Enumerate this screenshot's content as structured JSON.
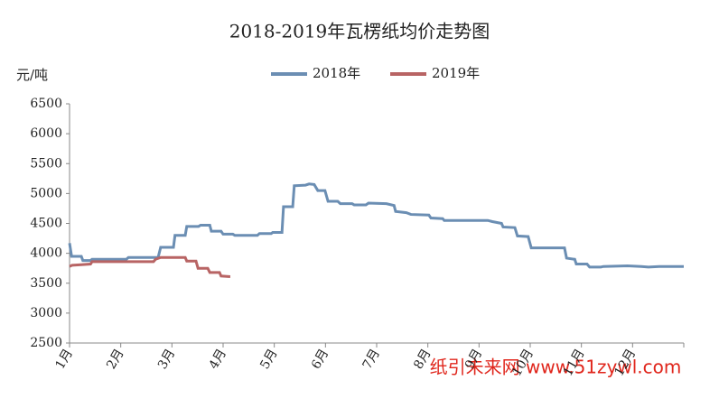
{
  "chart_data": {
    "type": "line",
    "title": "2018-2019年瓦楞纸均价走势图",
    "y_label": "元/吨",
    "watermark": "纸引未来网 www.51zywl.com",
    "xlim": [
      1,
      13
    ],
    "xticks": [
      {
        "value": 1,
        "label": "1月"
      },
      {
        "value": 2,
        "label": "2月"
      },
      {
        "value": 3,
        "label": "3月"
      },
      {
        "value": 4,
        "label": "4月"
      },
      {
        "value": 5,
        "label": "5月"
      },
      {
        "value": 6,
        "label": "6月"
      },
      {
        "value": 7,
        "label": "7月"
      },
      {
        "value": 8,
        "label": "8月"
      },
      {
        "value": 9,
        "label": "9月"
      },
      {
        "value": 10,
        "label": "10月"
      },
      {
        "value": 11,
        "label": "11月"
      },
      {
        "value": 12,
        "label": "12月"
      }
    ],
    "ylim": [
      2500,
      6500
    ],
    "yticks": [
      2500,
      3000,
      3500,
      4000,
      4500,
      5000,
      5500,
      6000,
      6500
    ],
    "series": [
      {
        "name": "2018年",
        "color": "#6b8eb3",
        "x": [
          1.0,
          1.04,
          1.23,
          1.26,
          1.41,
          1.44,
          2.11,
          2.15,
          2.73,
          2.78,
          3.03,
          3.06,
          3.26,
          3.29,
          3.52,
          3.56,
          3.74,
          3.77,
          3.96,
          4.0,
          4.19,
          4.23,
          4.67,
          4.71,
          4.94,
          4.97,
          5.15,
          5.18,
          5.36,
          5.39,
          5.61,
          5.68,
          5.78,
          5.85,
          5.99,
          6.05,
          6.24,
          6.29,
          6.52,
          6.56,
          6.79,
          6.84,
          7.19,
          7.34,
          7.37,
          7.58,
          7.67,
          8.02,
          8.06,
          8.29,
          8.32,
          9.17,
          9.26,
          9.44,
          9.47,
          9.7,
          9.75,
          9.96,
          10.02,
          10.67,
          10.71,
          10.87,
          10.9,
          11.11,
          11.16,
          11.38,
          11.43,
          11.9,
          12.17,
          12.31,
          12.52,
          13.0
        ],
        "values": [
          4170,
          3950,
          3950,
          3880,
          3880,
          3900,
          3900,
          3930,
          3930,
          4100,
          4100,
          4300,
          4300,
          4450,
          4450,
          4470,
          4470,
          4370,
          4370,
          4320,
          4320,
          4300,
          4300,
          4330,
          4330,
          4350,
          4350,
          4780,
          4780,
          5130,
          5140,
          5160,
          5150,
          5050,
          5050,
          4870,
          4870,
          4830,
          4830,
          4810,
          4810,
          4840,
          4830,
          4800,
          4700,
          4680,
          4650,
          4640,
          4590,
          4580,
          4550,
          4550,
          4530,
          4500,
          4440,
          4430,
          4290,
          4280,
          4090,
          4090,
          3920,
          3900,
          3820,
          3820,
          3770,
          3770,
          3780,
          3790,
          3780,
          3770,
          3780,
          3780
        ]
      },
      {
        "name": "2019年",
        "color": "#b86464",
        "x": [
          1.0,
          1.05,
          1.23,
          1.41,
          1.44,
          2.64,
          2.68,
          2.78,
          3.26,
          3.29,
          3.47,
          3.51,
          3.7,
          3.74,
          3.93,
          3.96,
          4.14
        ],
        "values": [
          3780,
          3800,
          3810,
          3820,
          3860,
          3860,
          3900,
          3930,
          3930,
          3870,
          3870,
          3750,
          3750,
          3680,
          3680,
          3620,
          3610
        ]
      }
    ]
  }
}
